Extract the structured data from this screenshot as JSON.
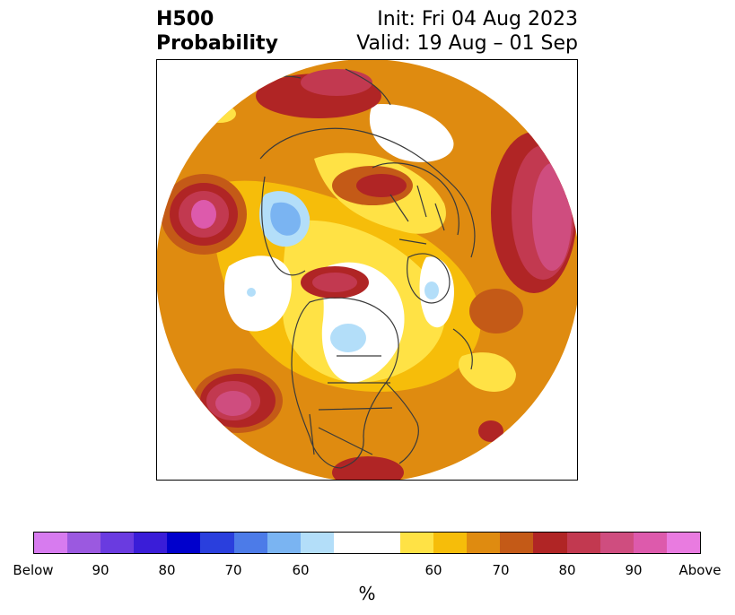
{
  "title": {
    "left_line1": "H500",
    "left_line2": "Probability",
    "right_line1": "Init: Fri 04 Aug 2023",
    "right_line2": "Valid: 19 Aug – 01 Sep"
  },
  "colorbar": {
    "colors": [
      "#d77bef",
      "#9b59e0",
      "#6a3be0",
      "#3a1dd8",
      "#0000cc",
      "#2a3fdd",
      "#4c7be8",
      "#7ab4f2",
      "#b3def9",
      "#ffffff",
      "#ffffff",
      "#ffe245",
      "#f6bd0a",
      "#df8b10",
      "#c45a17",
      "#b02525",
      "#c23950",
      "#cf4d7f",
      "#dd5aac",
      "#e97be0"
    ],
    "tick_labels": [
      "Below",
      "90",
      "80",
      "70",
      "60",
      "60",
      "70",
      "80",
      "90",
      "Above"
    ],
    "unit": "%"
  }
}
